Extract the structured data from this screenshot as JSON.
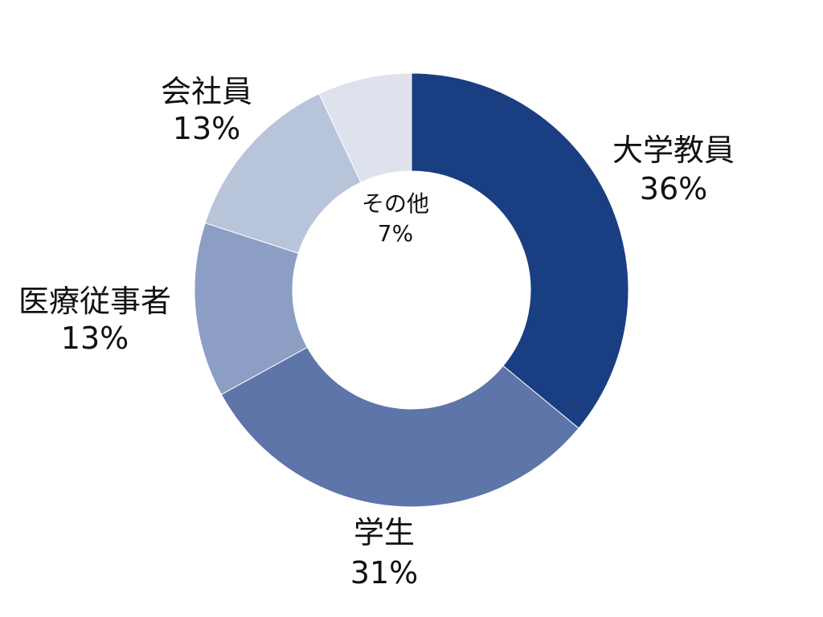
{
  "chart_data": {
    "type": "pie",
    "donut": true,
    "categories": [
      "大学教員",
      "学生",
      "医療従事者",
      "会社員",
      "その他"
    ],
    "values": [
      36,
      31,
      13,
      13,
      7
    ],
    "value_labels": [
      "36%",
      "31%",
      "13%",
      "13%",
      "7%"
    ],
    "colors": [
      "#1a3e82",
      "#5d75a8",
      "#8c9ec4",
      "#b8c4da",
      "#dde2ed"
    ],
    "start_angle": "12 o'clock",
    "direction": "clockwise",
    "title": "",
    "legend": "none"
  }
}
